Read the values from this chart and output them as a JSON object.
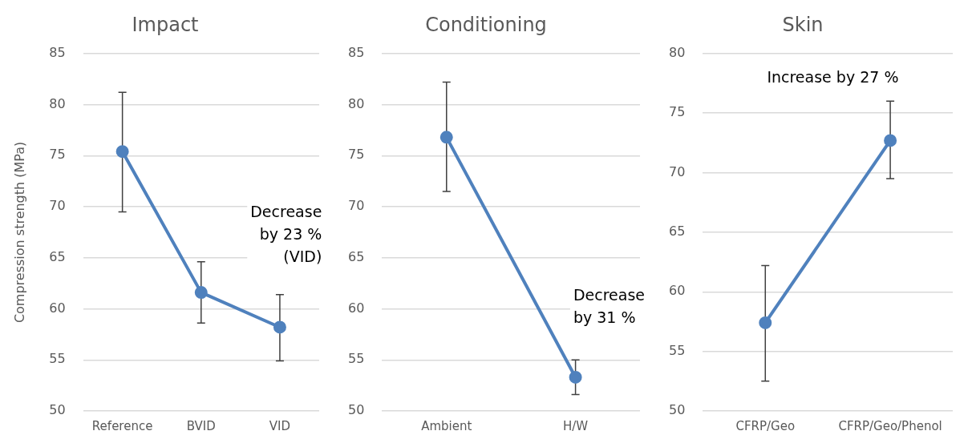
{
  "chart_data": [
    {
      "type": "line",
      "title": "Impact",
      "ylabel": "Compression strength (MPa)",
      "categories": [
        "Reference",
        "BVID",
        "VID"
      ],
      "series": [
        {
          "color": "#4f81bd",
          "values": [
            75.4,
            61.6,
            58.2
          ],
          "errors": [
            [
              69.5,
              81.2
            ],
            [
              58.6,
              64.6
            ],
            [
              54.9,
              61.4
            ]
          ]
        }
      ],
      "ylim": [
        50,
        85
      ],
      "yticks": [
        50,
        55,
        60,
        65,
        70,
        75,
        80,
        85
      ],
      "grid": "y",
      "marker": "circle",
      "line_style": "solid",
      "annotations": [
        "Decrease\nby 23 %\n(VID)"
      ]
    },
    {
      "type": "line",
      "title": "Conditioning",
      "categories": [
        "Ambient",
        "H/W"
      ],
      "series": [
        {
          "color": "#4f81bd",
          "values": [
            76.8,
            53.3
          ],
          "errors": [
            [
              71.5,
              82.2
            ],
            [
              51.6,
              55.0
            ]
          ]
        }
      ],
      "ylim": [
        50,
        85
      ],
      "yticks": [
        50,
        55,
        60,
        65,
        70,
        75,
        80,
        85
      ],
      "grid": "y",
      "marker": "circle",
      "line_style": "solid",
      "annotations": [
        "Decrease\nby 31 %"
      ]
    },
    {
      "type": "line",
      "title": "Skin",
      "categories": [
        "CFRP/Geo",
        "CFRP/Geo/Phenol"
      ],
      "series": [
        {
          "color": "#4f81bd",
          "values": [
            57.4,
            72.7
          ],
          "errors": [
            [
              52.5,
              62.2
            ],
            [
              69.5,
              76.0
            ]
          ]
        }
      ],
      "ylim": [
        50,
        80
      ],
      "yticks": [
        50,
        55,
        60,
        65,
        70,
        75,
        80
      ],
      "grid": "y",
      "marker": "circle",
      "line_style": "solid",
      "annotations": [
        "Increase by 27 %"
      ]
    }
  ]
}
